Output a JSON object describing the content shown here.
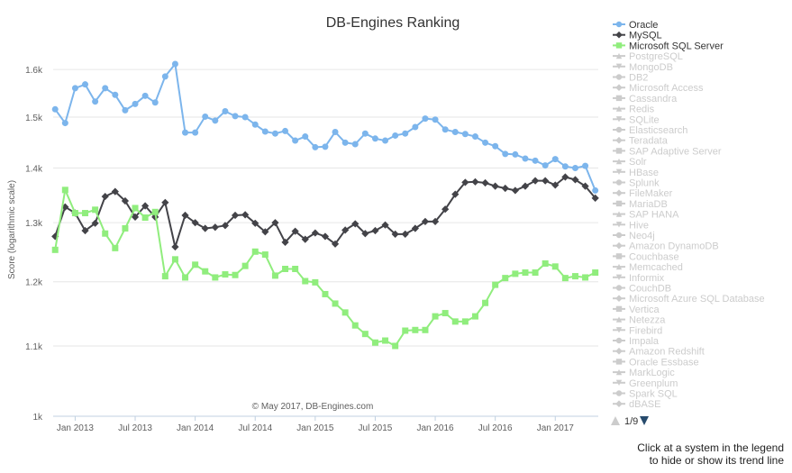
{
  "chart_data": {
    "type": "line",
    "title": "DB-Engines Ranking",
    "ylabel": "Score (logarithmic scale)",
    "yscale": "log",
    "ylim": [
      1000,
      1660
    ],
    "y_ticks": [
      1000,
      1100,
      1200,
      1300,
      1400,
      1500,
      1600
    ],
    "y_tick_labels": [
      "1k",
      "1.1k",
      "1.2k",
      "1.3k",
      "1.4k",
      "1.5k",
      "1.6k"
    ],
    "x_start": "2012-11",
    "x_end": "2017-05",
    "x_ticks": [
      "2013-01",
      "2013-07",
      "2014-01",
      "2014-07",
      "2015-01",
      "2015-07",
      "2016-01",
      "2016-07",
      "2017-01"
    ],
    "x_tick_labels": [
      "Jan 2013",
      "Jul 2013",
      "Jan 2014",
      "Jul 2014",
      "Jan 2015",
      "Jul 2015",
      "Jan 2016",
      "Jul 2016",
      "Jan 2017"
    ],
    "credit": "© May 2017, DB-Engines.com",
    "series": [
      {
        "name": "Oracle",
        "color": "#7cb5ec",
        "marker": "circle",
        "visible": true,
        "x": [
          "2012-11",
          "2012-12",
          "2013-01",
          "2013-02",
          "2013-03",
          "2013-04",
          "2013-05",
          "2013-06",
          "2013-07",
          "2013-08",
          "2013-09",
          "2013-10",
          "2013-11",
          "2013-12",
          "2014-01",
          "2014-02",
          "2014-03",
          "2014-04",
          "2014-05",
          "2014-06",
          "2014-07",
          "2014-08",
          "2014-09",
          "2014-10",
          "2014-11",
          "2014-12",
          "2015-01",
          "2015-02",
          "2015-03",
          "2015-04",
          "2015-05",
          "2015-06",
          "2015-07",
          "2015-08",
          "2015-09",
          "2015-10",
          "2015-11",
          "2015-12",
          "2016-01",
          "2016-02",
          "2016-03",
          "2016-04",
          "2016-05",
          "2016-06",
          "2016-07",
          "2016-08",
          "2016-09",
          "2016-10",
          "2016-11",
          "2016-12",
          "2017-01",
          "2017-02",
          "2017-03",
          "2017-04",
          "2017-05"
        ],
        "values": [
          1516,
          1488,
          1560,
          1568,
          1532,
          1560,
          1546,
          1514,
          1527,
          1544,
          1530,
          1585,
          1612,
          1469,
          1469,
          1501,
          1493,
          1512,
          1502,
          1500,
          1485,
          1471,
          1467,
          1472,
          1453,
          1461,
          1440,
          1441,
          1470,
          1449,
          1446,
          1467,
          1457,
          1453,
          1463,
          1467,
          1480,
          1497,
          1495,
          1475,
          1470,
          1466,
          1461,
          1449,
          1442,
          1427,
          1426,
          1418,
          1414,
          1405,
          1417,
          1403,
          1400,
          1404,
          1358
        ]
      },
      {
        "name": "MySQL",
        "color": "#434348",
        "marker": "diamond",
        "visible": true,
        "x": [
          "2012-11",
          "2012-12",
          "2013-01",
          "2013-02",
          "2013-03",
          "2013-04",
          "2013-05",
          "2013-06",
          "2013-07",
          "2013-08",
          "2013-09",
          "2013-10",
          "2013-11",
          "2013-12",
          "2014-01",
          "2014-02",
          "2014-03",
          "2014-04",
          "2014-05",
          "2014-06",
          "2014-07",
          "2014-08",
          "2014-09",
          "2014-10",
          "2014-11",
          "2014-12",
          "2015-01",
          "2015-02",
          "2015-03",
          "2015-04",
          "2015-05",
          "2015-06",
          "2015-07",
          "2015-08",
          "2015-09",
          "2015-10",
          "2015-11",
          "2015-12",
          "2016-01",
          "2016-02",
          "2016-03",
          "2016-04",
          "2016-05",
          "2016-06",
          "2016-07",
          "2016-08",
          "2016-09",
          "2016-10",
          "2016-11",
          "2016-12",
          "2017-01",
          "2017-02",
          "2017-03",
          "2017-04",
          "2017-05"
        ],
        "values": [
          1276,
          1328,
          1317,
          1286,
          1299,
          1347,
          1356,
          1339,
          1310,
          1330,
          1310,
          1336,
          1258,
          1313,
          1300,
          1290,
          1292,
          1295,
          1313,
          1314,
          1299,
          1284,
          1300,
          1266,
          1285,
          1271,
          1282,
          1276,
          1263,
          1287,
          1298,
          1281,
          1286,
          1296,
          1280,
          1280,
          1290,
          1302,
          1302,
          1324,
          1351,
          1373,
          1374,
          1372,
          1366,
          1362,
          1358,
          1366,
          1376,
          1376,
          1368,
          1383,
          1378,
          1366,
          1344
        ]
      },
      {
        "name": "Microsoft SQL Server",
        "color": "#90ed7d",
        "marker": "square",
        "visible": true,
        "x": [
          "2012-11",
          "2012-12",
          "2013-01",
          "2013-02",
          "2013-03",
          "2013-04",
          "2013-05",
          "2013-06",
          "2013-07",
          "2013-08",
          "2013-09",
          "2013-10",
          "2013-11",
          "2013-12",
          "2014-01",
          "2014-02",
          "2014-03",
          "2014-04",
          "2014-05",
          "2014-06",
          "2014-07",
          "2014-08",
          "2014-09",
          "2014-10",
          "2014-11",
          "2014-12",
          "2015-01",
          "2015-02",
          "2015-03",
          "2015-04",
          "2015-05",
          "2015-06",
          "2015-07",
          "2015-08",
          "2015-09",
          "2015-10",
          "2015-11",
          "2015-12",
          "2016-01",
          "2016-02",
          "2016-03",
          "2016-04",
          "2016-05",
          "2016-06",
          "2016-07",
          "2016-08",
          "2016-09",
          "2016-10",
          "2016-11",
          "2016-12",
          "2017-01",
          "2017-02",
          "2017-03",
          "2017-04",
          "2017-05"
        ],
        "values": [
          1253,
          1359,
          1317,
          1317,
          1323,
          1281,
          1256,
          1290,
          1326,
          1309,
          1319,
          1209,
          1237,
          1207,
          1228,
          1217,
          1207,
          1212,
          1211,
          1226,
          1250,
          1245,
          1210,
          1221,
          1221,
          1201,
          1199,
          1180,
          1165,
          1151,
          1131,
          1118,
          1105,
          1108,
          1100,
          1123,
          1124,
          1124,
          1145,
          1150,
          1137,
          1137,
          1145,
          1166,
          1195,
          1206,
          1213,
          1215,
          1215,
          1230,
          1225,
          1206,
          1209,
          1207,
          1215
        ]
      }
    ]
  },
  "legend": {
    "items": [
      {
        "name": "Oracle",
        "marker": "circle",
        "color": "#7cb5ec",
        "active": true
      },
      {
        "name": "MySQL",
        "marker": "diamond",
        "color": "#434348",
        "active": true
      },
      {
        "name": "Microsoft SQL Server",
        "marker": "square",
        "color": "#90ed7d",
        "active": true
      },
      {
        "name": "PostgreSQL",
        "marker": "triangle",
        "active": false
      },
      {
        "name": "MongoDB",
        "marker": "triangle-down",
        "active": false
      },
      {
        "name": "DB2",
        "marker": "circle",
        "active": false
      },
      {
        "name": "Microsoft Access",
        "marker": "diamond",
        "active": false
      },
      {
        "name": "Cassandra",
        "marker": "square",
        "active": false
      },
      {
        "name": "Redis",
        "marker": "triangle",
        "active": false
      },
      {
        "name": "SQLite",
        "marker": "triangle-down",
        "active": false
      },
      {
        "name": "Elasticsearch",
        "marker": "circle",
        "active": false
      },
      {
        "name": "Teradata",
        "marker": "diamond",
        "active": false
      },
      {
        "name": "SAP Adaptive Server",
        "marker": "square",
        "active": false
      },
      {
        "name": "Solr",
        "marker": "triangle",
        "active": false
      },
      {
        "name": "HBase",
        "marker": "triangle-down",
        "active": false
      },
      {
        "name": "Splunk",
        "marker": "circle",
        "active": false
      },
      {
        "name": "FileMaker",
        "marker": "diamond",
        "active": false
      },
      {
        "name": "MariaDB",
        "marker": "square",
        "active": false
      },
      {
        "name": "SAP HANA",
        "marker": "triangle",
        "active": false
      },
      {
        "name": "Hive",
        "marker": "triangle-down",
        "active": false
      },
      {
        "name": "Neo4j",
        "marker": "circle",
        "active": false
      },
      {
        "name": "Amazon DynamoDB",
        "marker": "diamond",
        "active": false
      },
      {
        "name": "Couchbase",
        "marker": "square",
        "active": false
      },
      {
        "name": "Memcached",
        "marker": "triangle",
        "active": false
      },
      {
        "name": "Informix",
        "marker": "triangle-down",
        "active": false
      },
      {
        "name": "CouchDB",
        "marker": "circle",
        "active": false
      },
      {
        "name": "Microsoft Azure SQL Database",
        "marker": "diamond",
        "active": false
      },
      {
        "name": "Vertica",
        "marker": "square",
        "active": false
      },
      {
        "name": "Netezza",
        "marker": "triangle",
        "active": false
      },
      {
        "name": "Firebird",
        "marker": "triangle-down",
        "active": false
      },
      {
        "name": "Impala",
        "marker": "circle",
        "active": false
      },
      {
        "name": "Amazon Redshift",
        "marker": "diamond",
        "active": false
      },
      {
        "name": "Oracle Essbase",
        "marker": "square",
        "active": false
      },
      {
        "name": "MarkLogic",
        "marker": "triangle",
        "active": false
      },
      {
        "name": "Greenplum",
        "marker": "triangle-down",
        "active": false
      },
      {
        "name": "Spark SQL",
        "marker": "circle",
        "active": false
      },
      {
        "name": "dBASE",
        "marker": "diamond",
        "active": false
      }
    ],
    "pager_label": "1/9",
    "inactive_color": "#cccccc"
  },
  "hint": {
    "line1": "Click at a system in the legend",
    "line2": "to hide or show its trend line"
  }
}
